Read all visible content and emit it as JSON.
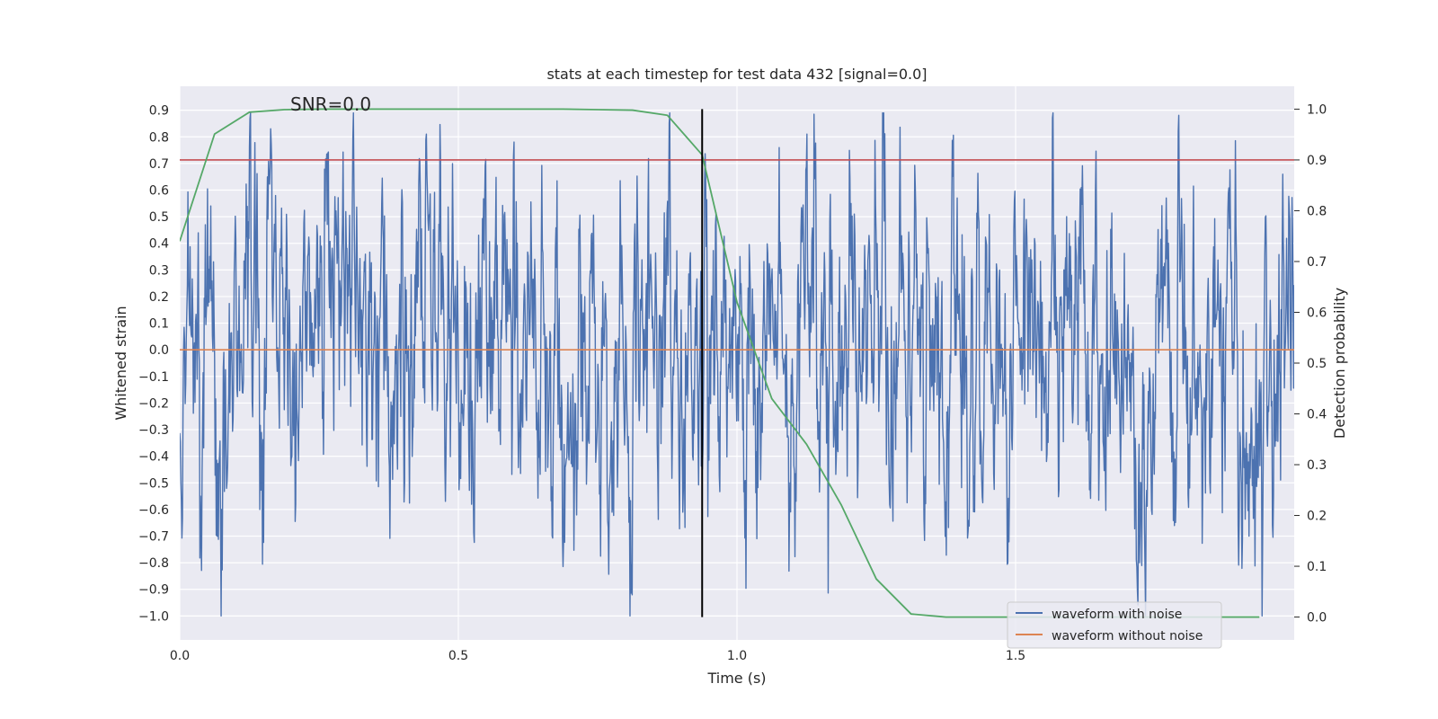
{
  "chart_data": {
    "type": "line",
    "title": "stats at each timestep for test data 432 [signal=0.0]",
    "xlabel": "Time (s)",
    "ylabel": "Whitened strain",
    "y2label": "Detection probability",
    "annotation": "SNR=0.0",
    "xlim": [
      0.0,
      2.0
    ],
    "ylim": [
      -1.09,
      0.99
    ],
    "y2lim": [
      -0.045,
      1.045
    ],
    "xticks": [
      0.0,
      0.5,
      1.0,
      1.5
    ],
    "xtick_labels": [
      "0.0",
      "0.5",
      "1.0",
      "1.5"
    ],
    "yticks": [
      0.9,
      0.8,
      0.7,
      0.6,
      0.5,
      0.4,
      0.3,
      0.2,
      0.1,
      0.0,
      -0.1,
      -0.2,
      -0.3,
      -0.4,
      -0.5,
      -0.6,
      -0.7,
      -0.8,
      -0.9,
      -1.0
    ],
    "ytick_labels": [
      "0.9",
      "0.8",
      "0.7",
      "0.6",
      "0.5",
      "0.4",
      "0.3",
      "0.2",
      "0.1",
      "0.0",
      "−0.1",
      "−0.2",
      "−0.3",
      "−0.4",
      "−0.5",
      "−0.6",
      "−0.7",
      "−0.8",
      "−0.9",
      "−1.0"
    ],
    "y2ticks": [
      1.0,
      0.9,
      0.8,
      0.7,
      0.6,
      0.5,
      0.4,
      0.3,
      0.2,
      0.1,
      0.0
    ],
    "y2tick_labels": [
      "1.0",
      "0.9",
      "0.8",
      "0.7",
      "0.6",
      "0.5",
      "0.4",
      "0.3",
      "0.2",
      "0.1",
      "0.0"
    ],
    "noise_series": {
      "name": "waveform with noise",
      "color": "#4c72b0",
      "samples": 2048,
      "seed": 432,
      "std": 0.28,
      "peak_max": 0.89,
      "peak_min": -1.0
    },
    "clean_series": {
      "name": "waveform without noise",
      "color": "#dd8452",
      "x": [
        0.0,
        2.0
      ],
      "y": [
        0.0,
        0.0
      ]
    },
    "probability_series": {
      "name": "detection probability",
      "color": "#55a868",
      "x": [
        0.0,
        0.0625,
        0.125,
        0.1875,
        0.25,
        0.3125,
        0.375,
        0.4375,
        0.5,
        0.5625,
        0.625,
        0.6875,
        0.75,
        0.8125,
        0.875,
        0.9375,
        1.0,
        1.0625,
        1.125,
        1.1875,
        1.25,
        1.3125,
        1.375,
        1.4375,
        1.5,
        1.5625,
        1.625,
        1.6875,
        1.75,
        1.8125,
        1.875,
        1.9375
      ],
      "y": [
        0.74,
        0.951,
        0.994,
        0.999,
        1.0,
        1.0,
        1.0,
        1.0,
        1.0,
        1.0,
        1.0,
        1.0,
        0.999,
        0.998,
        0.988,
        0.91,
        0.62,
        0.43,
        0.34,
        0.22,
        0.075,
        0.006,
        0.0,
        0.0,
        0.0,
        0.0,
        0.0,
        0.0,
        0.0,
        0.0,
        0.0,
        0.0
      ]
    },
    "threshold": {
      "value": 0.9,
      "axis": "y2",
      "color": "#c44e52"
    },
    "marker_time": {
      "value": 0.9375,
      "color": "#000000"
    },
    "legend": {
      "position": "lower-right",
      "items": [
        {
          "label": "waveform with noise",
          "color": "#4c72b0"
        },
        {
          "label": "waveform without noise",
          "color": "#dd8452"
        }
      ]
    },
    "grid": true
  }
}
